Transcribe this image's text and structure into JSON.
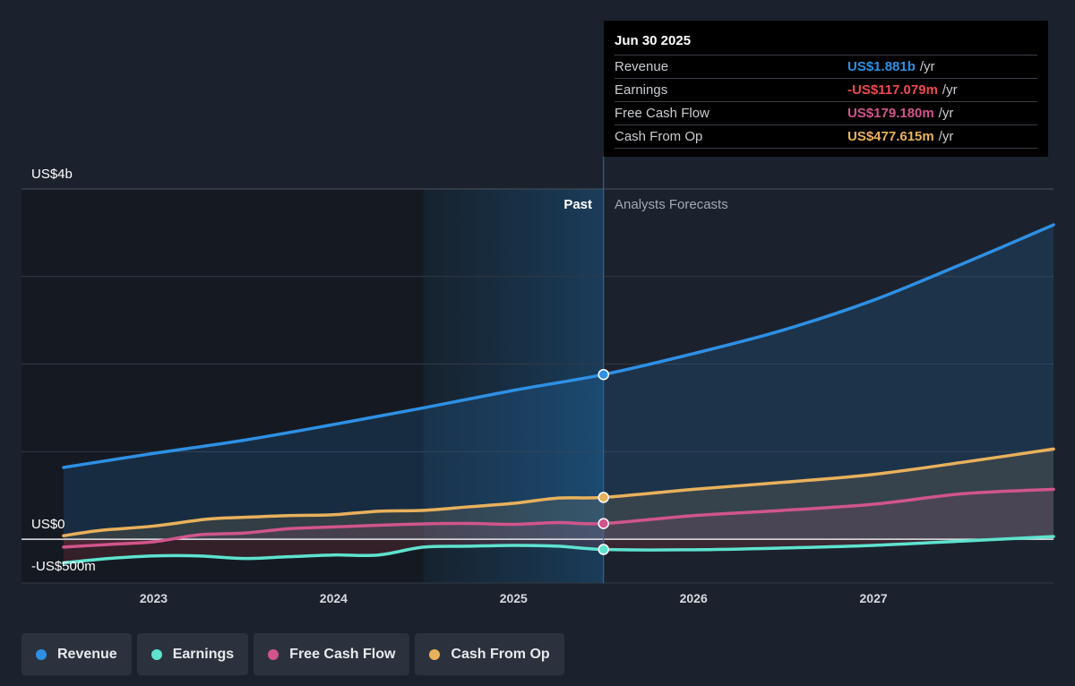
{
  "tooltip": {
    "title": "Jun 30 2025",
    "rows": [
      {
        "label": "Revenue",
        "value": "US$1.881b",
        "unit": "/yr",
        "color": "#2e90e4"
      },
      {
        "label": "Earnings",
        "value": "-US$117.079m",
        "unit": "/yr",
        "color": "#f0484e"
      },
      {
        "label": "Free Cash Flow",
        "value": "US$179.180m",
        "unit": "/yr",
        "color": "#d1558b"
      },
      {
        "label": "Cash From Op",
        "value": "US$477.615m",
        "unit": "/yr",
        "color": "#e9b15c"
      }
    ]
  },
  "regions": {
    "past_label": "Past",
    "forecast_label": "Analysts Forecasts"
  },
  "legend": [
    {
      "label": "Revenue",
      "color": "#2e90e4"
    },
    {
      "label": "Earnings",
      "color": "#5ee3cf"
    },
    {
      "label": "Free Cash Flow",
      "color": "#d1558b"
    },
    {
      "label": "Cash From Op",
      "color": "#e9b15c"
    }
  ],
  "chart_data": {
    "type": "line",
    "y_tick_labels": [
      {
        "value": 4000,
        "label": "US$4b"
      },
      {
        "value": 0,
        "label": "US$0"
      },
      {
        "value": -500,
        "label": "-US$500m"
      }
    ],
    "x_tick_labels": [
      {
        "x": 2023.0,
        "label": "2023"
      },
      {
        "x": 2024.0,
        "label": "2024"
      },
      {
        "x": 2025.0,
        "label": "2025"
      },
      {
        "x": 2026.0,
        "label": "2026"
      },
      {
        "x": 2027.0,
        "label": "2027"
      }
    ],
    "xlim": [
      2022.25,
      2028.0
    ],
    "ylim": [
      -500,
      4000
    ],
    "grid_values": [
      3000,
      2000,
      1000
    ],
    "highlight_range": [
      2024.5,
      2025.5
    ],
    "marker_x": 2025.5,
    "series": [
      {
        "name": "Revenue",
        "color": "#2e90e4",
        "fill": true,
        "points": [
          [
            2022.5,
            820
          ],
          [
            2023.0,
            980
          ],
          [
            2023.5,
            1130
          ],
          [
            2024.0,
            1310
          ],
          [
            2024.5,
            1500
          ],
          [
            2025.0,
            1700
          ],
          [
            2025.5,
            1881
          ],
          [
            2026.0,
            2120
          ],
          [
            2026.5,
            2390
          ],
          [
            2027.0,
            2730
          ],
          [
            2027.5,
            3150
          ],
          [
            2028.0,
            3590
          ]
        ]
      },
      {
        "name": "Cash From Op",
        "color": "#e9b15c",
        "fill": true,
        "points": [
          [
            2022.5,
            40
          ],
          [
            2022.7,
            100
          ],
          [
            2023.0,
            150
          ],
          [
            2023.3,
            230
          ],
          [
            2023.5,
            250
          ],
          [
            2023.75,
            270
          ],
          [
            2024.0,
            280
          ],
          [
            2024.25,
            320
          ],
          [
            2024.5,
            330
          ],
          [
            2024.75,
            370
          ],
          [
            2025.0,
            410
          ],
          [
            2025.25,
            470
          ],
          [
            2025.5,
            477.6
          ],
          [
            2026.0,
            570
          ],
          [
            2026.5,
            650
          ],
          [
            2027.0,
            740
          ],
          [
            2027.5,
            880
          ],
          [
            2028.0,
            1030
          ]
        ]
      },
      {
        "name": "Free Cash Flow",
        "color": "#d1558b",
        "fill": true,
        "points": [
          [
            2022.5,
            -90
          ],
          [
            2022.75,
            -60
          ],
          [
            2023.0,
            -30
          ],
          [
            2023.25,
            50
          ],
          [
            2023.5,
            70
          ],
          [
            2023.75,
            120
          ],
          [
            2024.0,
            140
          ],
          [
            2024.25,
            160
          ],
          [
            2024.5,
            175
          ],
          [
            2024.75,
            180
          ],
          [
            2025.0,
            170
          ],
          [
            2025.25,
            190
          ],
          [
            2025.5,
            179.2
          ],
          [
            2026.0,
            270
          ],
          [
            2026.5,
            330
          ],
          [
            2027.0,
            400
          ],
          [
            2027.5,
            520
          ],
          [
            2028.0,
            570
          ]
        ]
      },
      {
        "name": "Earnings",
        "color": "#5ee3cf",
        "fill": false,
        "points": [
          [
            2022.5,
            -270
          ],
          [
            2022.75,
            -220
          ],
          [
            2023.0,
            -190
          ],
          [
            2023.25,
            -190
          ],
          [
            2023.5,
            -220
          ],
          [
            2023.75,
            -200
          ],
          [
            2024.0,
            -180
          ],
          [
            2024.25,
            -180
          ],
          [
            2024.5,
            -90
          ],
          [
            2024.75,
            -80
          ],
          [
            2025.0,
            -70
          ],
          [
            2025.25,
            -80
          ],
          [
            2025.5,
            -117.1
          ],
          [
            2026.0,
            -120
          ],
          [
            2026.5,
            -100
          ],
          [
            2027.0,
            -70
          ],
          [
            2027.5,
            -20
          ],
          [
            2028.0,
            30
          ]
        ]
      }
    ]
  }
}
